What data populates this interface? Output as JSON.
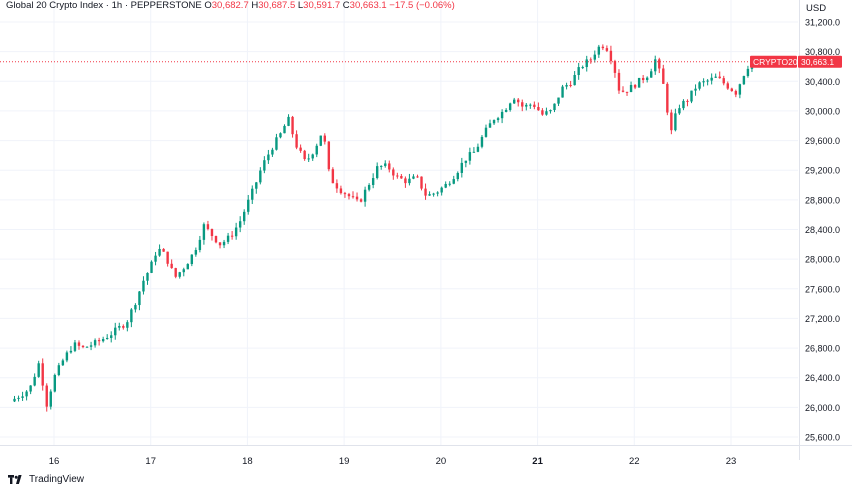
{
  "header": {
    "symbol_line": "Global 20 Crypto Index · 1h · PEPPERSTONE",
    "o_label": "O",
    "o_value": "30,682.7",
    "h_label": "H",
    "h_value": "30,687.5",
    "l_label": "L",
    "l_value": "30,591.7",
    "c_label": "C",
    "c_value": "30,663.1",
    "change": "−17.5 (−0.06%)"
  },
  "brand": {
    "name": "TradingView",
    "icon": "tradingview-logo-icon"
  },
  "colors": {
    "up": "#089981",
    "down": "#f23645",
    "grid": "#f0f3fa",
    "axis_text": "#131722",
    "label_bg": "#f23645"
  },
  "chart_data": {
    "type": "candlestick",
    "title": "Global 20 Crypto Index · 1h · PEPPERSTONE",
    "ylabel": "USD",
    "ylim": [
      25400,
      31400
    ],
    "y_ticks": [
      25600,
      26000,
      26400,
      26800,
      27200,
      27600,
      28000,
      28400,
      28800,
      29200,
      29600,
      30000,
      30400,
      30800,
      31200
    ],
    "y_tick_labels": [
      "25,600.0",
      "26,000.0",
      "26,400.0",
      "26,800.0",
      "27,200.0",
      "27,600.0",
      "28,000.0",
      "28,400.0",
      "28,800.0",
      "29,200.0",
      "29,600.0",
      "30,000.0",
      "30,400.0",
      "30,800.0",
      "31,200.0"
    ],
    "x_ticks": [
      {
        "label": "16",
        "bold": false,
        "day": 16
      },
      {
        "label": "17",
        "bold": false,
        "day": 17
      },
      {
        "label": "18",
        "bold": false,
        "day": 18
      },
      {
        "label": "19",
        "bold": false,
        "day": 19
      },
      {
        "label": "20",
        "bold": false,
        "day": 20
      },
      {
        "label": "21",
        "bold": true,
        "day": 21
      },
      {
        "label": "22",
        "bold": false,
        "day": 22
      },
      {
        "label": "23",
        "bold": false,
        "day": 23
      }
    ],
    "x_start_day": 15.5,
    "x_end_day": 24.1,
    "last_price": 30663.1,
    "last_price_label": "30,663.1",
    "price_tag": "CRYPTO20",
    "close_path": [
      [
        15.55,
        26080
      ],
      [
        15.75,
        26250
      ],
      [
        15.85,
        26620
      ],
      [
        15.92,
        26020
      ],
      [
        16.0,
        26400
      ],
      [
        16.1,
        26650
      ],
      [
        16.2,
        26850
      ],
      [
        16.3,
        26800
      ],
      [
        16.45,
        26880
      ],
      [
        16.6,
        27000
      ],
      [
        16.75,
        27150
      ],
      [
        16.85,
        27450
      ],
      [
        16.92,
        27700
      ],
      [
        17.0,
        27900
      ],
      [
        17.07,
        28150
      ],
      [
        17.15,
        28050
      ],
      [
        17.25,
        27750
      ],
      [
        17.35,
        27900
      ],
      [
        17.45,
        28100
      ],
      [
        17.55,
        28450
      ],
      [
        17.65,
        28300
      ],
      [
        17.72,
        28200
      ],
      [
        17.82,
        28300
      ],
      [
        17.92,
        28500
      ],
      [
        18.0,
        28750
      ],
      [
        18.08,
        29000
      ],
      [
        18.15,
        29250
      ],
      [
        18.25,
        29500
      ],
      [
        18.35,
        29700
      ],
      [
        18.42,
        29900
      ],
      [
        18.5,
        29550
      ],
      [
        18.6,
        29300
      ],
      [
        18.7,
        29500
      ],
      [
        18.78,
        29750
      ],
      [
        18.85,
        29100
      ],
      [
        18.95,
        28950
      ],
      [
        19.05,
        28850
      ],
      [
        19.15,
        28750
      ],
      [
        19.25,
        29000
      ],
      [
        19.35,
        29250
      ],
      [
        19.45,
        29250
      ],
      [
        19.55,
        29100
      ],
      [
        19.65,
        29050
      ],
      [
        19.75,
        29100
      ],
      [
        19.85,
        28850
      ],
      [
        19.95,
        28900
      ],
      [
        20.05,
        29000
      ],
      [
        20.15,
        29150
      ],
      [
        20.25,
        29350
      ],
      [
        20.35,
        29450
      ],
      [
        20.45,
        29700
      ],
      [
        20.55,
        29900
      ],
      [
        20.65,
        30000
      ],
      [
        20.75,
        30200
      ],
      [
        20.85,
        30050
      ],
      [
        20.95,
        30100
      ],
      [
        21.05,
        29950
      ],
      [
        21.15,
        30000
      ],
      [
        21.25,
        30300
      ],
      [
        21.35,
        30400
      ],
      [
        21.45,
        30600
      ],
      [
        21.55,
        30700
      ],
      [
        21.62,
        30850
      ],
      [
        21.7,
        30900
      ],
      [
        21.78,
        30650
      ],
      [
        21.85,
        30250
      ],
      [
        21.95,
        30300
      ],
      [
        22.05,
        30400
      ],
      [
        22.15,
        30500
      ],
      [
        22.22,
        30700
      ],
      [
        22.3,
        30350
      ],
      [
        22.38,
        29700
      ],
      [
        22.45,
        30050
      ],
      [
        22.55,
        30150
      ],
      [
        22.65,
        30350
      ],
      [
        22.75,
        30400
      ],
      [
        22.85,
        30450
      ],
      [
        22.95,
        30350
      ],
      [
        23.05,
        30250
      ],
      [
        23.15,
        30550
      ],
      [
        23.22,
        30700
      ]
    ]
  }
}
